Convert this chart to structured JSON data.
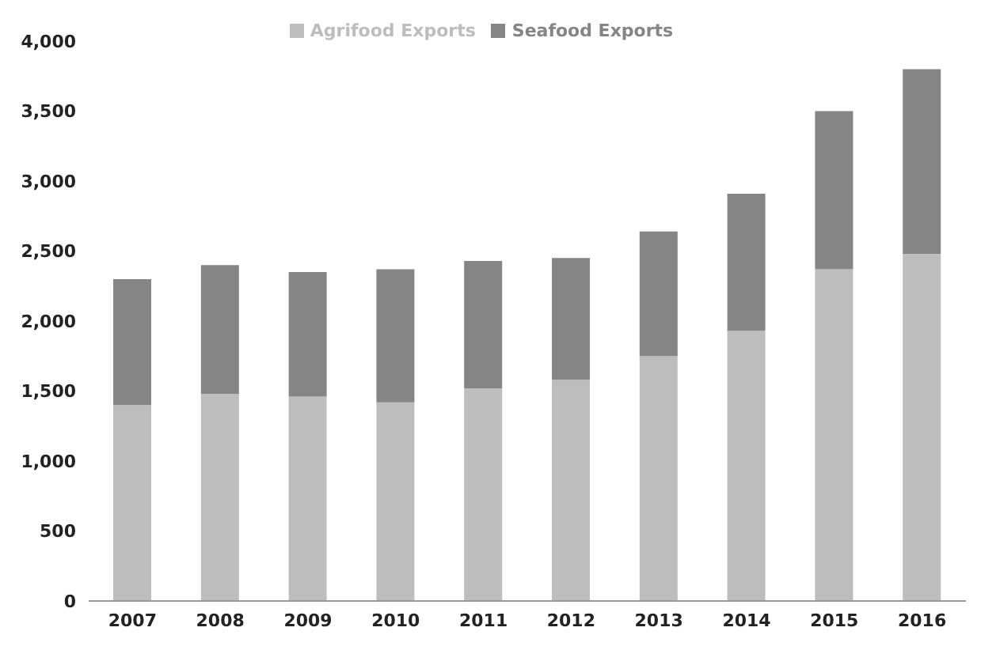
{
  "chart_data": {
    "type": "bar",
    "stacked": true,
    "categories": [
      "2007",
      "2008",
      "2009",
      "2010",
      "2011",
      "2012",
      "2013",
      "2014",
      "2015",
      "2016"
    ],
    "series": [
      {
        "name": "Agrifood Exports",
        "color": "#bdbdbd",
        "values": [
          1400,
          1480,
          1460,
          1420,
          1520,
          1580,
          1750,
          1930,
          2370,
          2480
        ]
      },
      {
        "name": "Seafood Exports",
        "color": "#858585",
        "values": [
          900,
          920,
          890,
          950,
          910,
          870,
          890,
          980,
          1130,
          1320
        ]
      }
    ],
    "ylim": [
      0,
      4000
    ],
    "yticks": [
      {
        "value": 0,
        "label": "0"
      },
      {
        "value": 500,
        "label": "500"
      },
      {
        "value": 1000,
        "label": "1,000"
      },
      {
        "value": 1500,
        "label": "1,500"
      },
      {
        "value": 2000,
        "label": "2,000"
      },
      {
        "value": 2500,
        "label": "2,500"
      },
      {
        "value": 3000,
        "label": "3,000"
      },
      {
        "value": 3500,
        "label": "3,500"
      },
      {
        "value": 4000,
        "label": "4,000"
      }
    ],
    "grid": false,
    "legend": "top"
  }
}
